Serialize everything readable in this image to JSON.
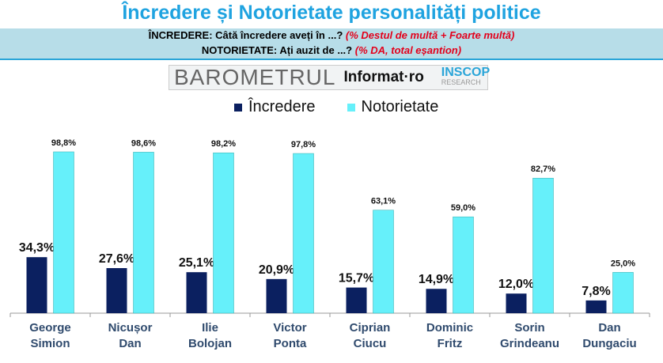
{
  "chart_data": {
    "type": "bar",
    "title": "Încredere și Notorietate personalități politice",
    "subtitle1": {
      "text": "ÎNCREDERE: Câtă încredere aveți în ...?",
      "note": "(% Destul de multă + Foarte multă)"
    },
    "subtitle2": {
      "text": "NOTORIETATE: Ați auzit de ...?",
      "note": "(% DA, total eșantion)"
    },
    "logo": {
      "barometrul": "BAROMETRUL",
      "informat": "Informat·ro",
      "inscop": "INSCOP",
      "research": "RESEARCH"
    },
    "categories": [
      [
        "George",
        "Simion"
      ],
      [
        "Nicușor",
        "Dan"
      ],
      [
        "Ilie",
        "Bolojan"
      ],
      [
        "Victor",
        "Ponta"
      ],
      [
        "Ciprian",
        "Ciucu"
      ],
      [
        "Dominic",
        "Fritz"
      ],
      [
        "Sorin",
        "Grindeanu"
      ],
      [
        "Dan",
        "Dungaciu"
      ]
    ],
    "series": [
      {
        "name": "Încredere",
        "color": "#0b2060",
        "values": [
          34.3,
          27.6,
          25.1,
          20.9,
          15.7,
          14.9,
          12.0,
          7.8
        ],
        "labels": [
          "34,3%",
          "27,6%",
          "25,1%",
          "20,9%",
          "15,7%",
          "14,9%",
          "12,0%",
          "7,8%"
        ]
      },
      {
        "name": "Notorietate",
        "color": "#66f0fa",
        "values": [
          98.8,
          98.6,
          98.2,
          97.8,
          63.1,
          59.0,
          82.7,
          25.0
        ],
        "labels": [
          "98,8%",
          "98,6%",
          "98,2%",
          "97,8%",
          "63,1%",
          "59,0%",
          "82,7%",
          "25,0%"
        ]
      }
    ],
    "ylim": [
      0,
      100
    ],
    "legend": "top"
  }
}
